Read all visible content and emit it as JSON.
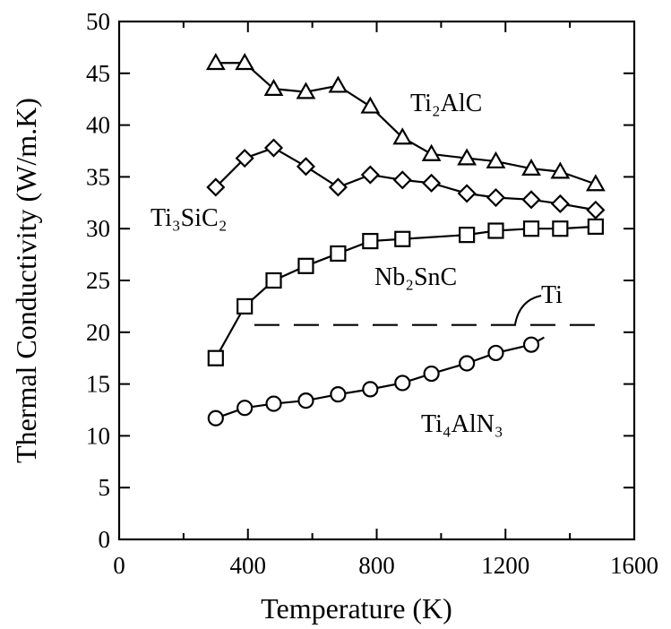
{
  "chart_data": {
    "type": "line",
    "title": "",
    "xlabel": "Temperature (K)",
    "ylabel": "Thermal Conductivity (W/m.K)",
    "xlim": [
      0,
      1600
    ],
    "ylim": [
      0,
      50
    ],
    "xticks": [
      0,
      400,
      800,
      1200,
      1600
    ],
    "yticks": [
      0,
      5,
      10,
      15,
      20,
      25,
      30,
      35,
      40,
      45,
      50
    ],
    "grid": false,
    "legend": "none (series labeled inline)",
    "series": [
      {
        "name": "Ti₂AlC",
        "marker": "triangle",
        "x": [
          300,
          390,
          480,
          580,
          680,
          780,
          880,
          970,
          1080,
          1170,
          1280,
          1370,
          1480
        ],
        "y": [
          46.0,
          46.0,
          43.5,
          43.2,
          43.8,
          41.8,
          38.8,
          37.2,
          36.8,
          36.5,
          35.8,
          35.5,
          34.3
        ]
      },
      {
        "name": "Ti₃SiC₂",
        "marker": "diamond",
        "x": [
          300,
          390,
          480,
          580,
          680,
          780,
          880,
          970,
          1080,
          1170,
          1280,
          1370,
          1480
        ],
        "y": [
          34.0,
          36.8,
          37.8,
          36.0,
          34.0,
          35.2,
          34.7,
          34.4,
          33.4,
          33.0,
          32.8,
          32.4,
          31.8
        ]
      },
      {
        "name": "Nb₂SnC",
        "marker": "square",
        "x": [
          300,
          390,
          480,
          580,
          680,
          780,
          880,
          1080,
          1170,
          1280,
          1370,
          1480
        ],
        "y": [
          17.5,
          22.5,
          25.0,
          26.4,
          27.6,
          28.8,
          29.0,
          29.4,
          29.8,
          30.0,
          30.0,
          30.2
        ]
      },
      {
        "name": "Ti",
        "marker": "none",
        "style": "dashed",
        "x": [
          420,
          1480
        ],
        "y": [
          20.7,
          20.7
        ]
      },
      {
        "name": "Ti₄AlN₃",
        "marker": "circle",
        "x": [
          300,
          390,
          480,
          580,
          680,
          780,
          880,
          970,
          1080,
          1170,
          1280
        ],
        "y": [
          11.7,
          12.7,
          13.1,
          13.4,
          14.0,
          14.5,
          15.1,
          16.0,
          17.0,
          18.0,
          18.8
        ],
        "trend_end": [
          1320,
          19.5
        ]
      }
    ]
  }
}
